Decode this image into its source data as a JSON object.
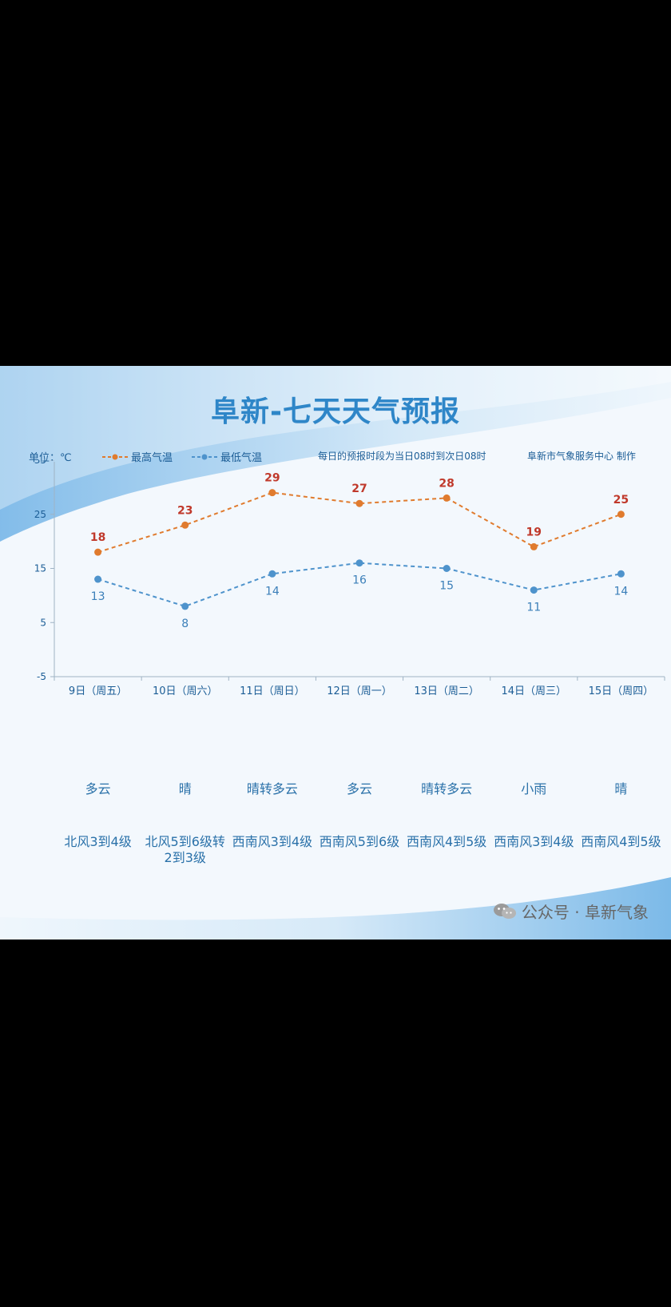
{
  "title": "阜新-七天天气预报",
  "unit_label": "单位：℃",
  "legend": {
    "high": "最高气温",
    "low": "最低气温"
  },
  "note_period": "每日的预报时段为当日08时到次日08时",
  "note_producer": "阜新市气象服务中心 制作",
  "chart_data": {
    "type": "line",
    "categories": [
      "9日（周五）",
      "10日（周六）",
      "11日（周日）",
      "12日（周一）",
      "13日（周二）",
      "14日（周三）",
      "15日（周四）"
    ],
    "series": [
      {
        "name": "最高气温",
        "values": [
          18,
          23,
          29,
          27,
          28,
          19,
          25
        ],
        "color": "#e07b2e",
        "label_color": "#c0392b"
      },
      {
        "name": "最低气温",
        "values": [
          13,
          8,
          14,
          16,
          15,
          11,
          14
        ],
        "color": "#4e93cc",
        "label_color": "#3b7fb9"
      }
    ],
    "yticks": [
      -5,
      5,
      15,
      25,
      35
    ],
    "ylim": [
      -5,
      35
    ],
    "line_style": "dashed",
    "grid": false,
    "legend_position": "top-left"
  },
  "weather": [
    "多云",
    "晴",
    "晴转多云",
    "多云",
    "晴转多云",
    "小雨",
    "晴"
  ],
  "wind": [
    "北风3到4级",
    "北风5到6级转2到3级",
    "西南风3到4级",
    "西南风5到6级",
    "西南风4到5级",
    "西南风3到4级",
    "西南风4到5级"
  ],
  "watermark": "公众号 · 阜新气象",
  "colors": {
    "title": "#2e86c8",
    "axis_text": "#1b5d96",
    "background_band": "#8fc3ea"
  }
}
